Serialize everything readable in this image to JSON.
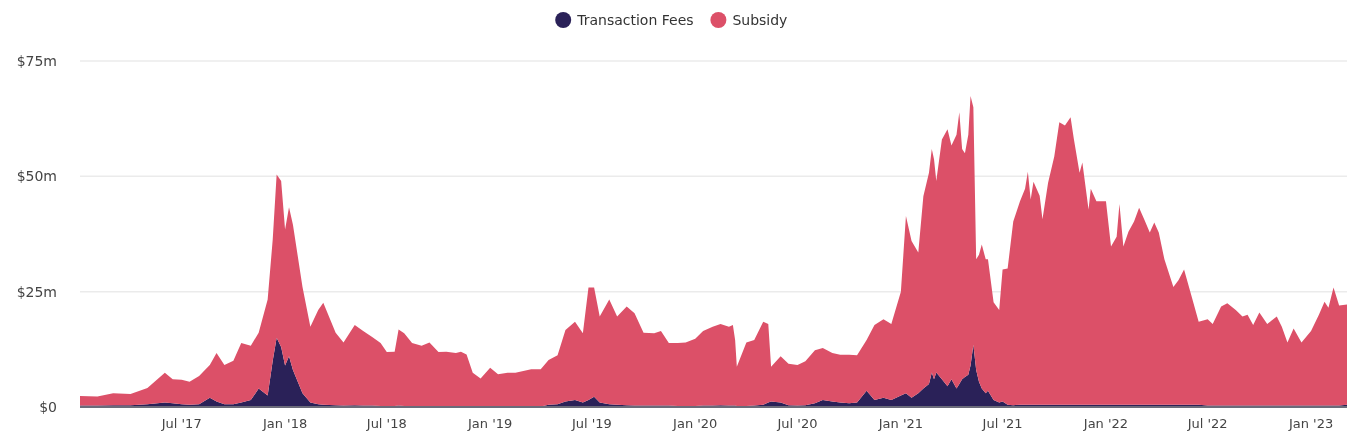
{
  "chart_data": {
    "type": "area",
    "stacked": true,
    "legend": "top",
    "grid": "y",
    "x": [
      "2017-01-01",
      "2017-02-01",
      "2017-03-01",
      "2017-04-01",
      "2017-05-01",
      "2017-06-01",
      "2017-06-15",
      "2017-07-01",
      "2017-07-15",
      "2017-08-01",
      "2017-08-20",
      "2017-09-01",
      "2017-09-15",
      "2017-10-01",
      "2017-10-15",
      "2017-11-01",
      "2017-11-15",
      "2017-12-01",
      "2017-12-10",
      "2017-12-17",
      "2017-12-25",
      "2018-01-01",
      "2018-01-08",
      "2018-01-15",
      "2018-02-01",
      "2018-02-15",
      "2018-03-01",
      "2018-03-10",
      "2018-04-01",
      "2018-04-15",
      "2018-05-05",
      "2018-05-20",
      "2018-06-05",
      "2018-06-20",
      "2018-07-01",
      "2018-07-15",
      "2018-07-22",
      "2018-08-01",
      "2018-08-15",
      "2018-09-01",
      "2018-09-15",
      "2018-10-01",
      "2018-10-15",
      "2018-11-01",
      "2018-11-10",
      "2018-11-20",
      "2018-12-01",
      "2018-12-15",
      "2019-01-01",
      "2019-01-15",
      "2019-02-01",
      "2019-02-15",
      "2019-03-01",
      "2019-03-15",
      "2019-04-01",
      "2019-04-15",
      "2019-05-01",
      "2019-05-15",
      "2019-06-01",
      "2019-06-15",
      "2019-06-25",
      "2019-07-05",
      "2019-07-15",
      "2019-08-01",
      "2019-08-15",
      "2019-09-01",
      "2019-09-15",
      "2019-10-01",
      "2019-10-20",
      "2019-11-01",
      "2019-11-15",
      "2019-12-01",
      "2019-12-15",
      "2020-01-01",
      "2020-01-15",
      "2020-02-01",
      "2020-02-15",
      "2020-03-01",
      "2020-03-08",
      "2020-03-12",
      "2020-03-15",
      "2020-04-01",
      "2020-04-15",
      "2020-05-01",
      "2020-05-10",
      "2020-05-15",
      "2020-06-01",
      "2020-06-15",
      "2020-07-01",
      "2020-07-15",
      "2020-08-01",
      "2020-08-15",
      "2020-09-01",
      "2020-09-15",
      "2020-10-01",
      "2020-10-15",
      "2020-11-01",
      "2020-11-15",
      "2020-12-01",
      "2020-12-15",
      "2021-01-01",
      "2021-01-10",
      "2021-01-20",
      "2021-02-01",
      "2021-02-10",
      "2021-02-20",
      "2021-02-25",
      "2021-03-01",
      "2021-03-05",
      "2021-03-15",
      "2021-03-25",
      "2021-04-01",
      "2021-04-10",
      "2021-04-15",
      "2021-04-20",
      "2021-04-25",
      "2021-05-01",
      "2021-05-05",
      "2021-05-10",
      "2021-05-15",
      "2021-05-20",
      "2021-05-25",
      "2021-06-01",
      "2021-06-05",
      "2021-06-15",
      "2021-06-25",
      "2021-07-01",
      "2021-07-10",
      "2021-07-20",
      "2021-08-01",
      "2021-08-10",
      "2021-08-15",
      "2021-08-20",
      "2021-08-25",
      "2021-09-05",
      "2021-09-10",
      "2021-09-20",
      "2021-10-01",
      "2021-10-10",
      "2021-10-20",
      "2021-10-30",
      "2021-11-05",
      "2021-11-15",
      "2021-11-20",
      "2021-12-01",
      "2021-12-05",
      "2021-12-15",
      "2022-01-01",
      "2022-01-10",
      "2022-01-20",
      "2022-01-25",
      "2022-02-01",
      "2022-02-10",
      "2022-02-20",
      "2022-03-01",
      "2022-03-10",
      "2022-03-20",
      "2022-03-28",
      "2022-04-05",
      "2022-04-15",
      "2022-05-01",
      "2022-05-10",
      "2022-05-20",
      "2022-06-01",
      "2022-06-15",
      "2022-07-01",
      "2022-07-10",
      "2022-07-25",
      "2022-08-05",
      "2022-08-20",
      "2022-09-01",
      "2022-09-10",
      "2022-09-20",
      "2022-10-01",
      "2022-10-15",
      "2022-11-01",
      "2022-11-10",
      "2022-11-20",
      "2022-12-01",
      "2022-12-15",
      "2023-01-01",
      "2023-01-15",
      "2023-01-25",
      "2023-02-01",
      "2023-02-10",
      "2023-02-20",
      "2023-03-06"
    ],
    "series": [
      {
        "name": "Transaction Fees",
        "color": "#2a2158",
        "values": [
          0.3,
          0.3,
          0.4,
          0.4,
          0.6,
          1.0,
          0.8,
          0.6,
          0.5,
          0.6,
          2.0,
          1.2,
          0.6,
          0.6,
          1.0,
          1.5,
          4.0,
          2.5,
          10,
          15,
          13,
          9,
          11,
          8,
          3,
          1,
          0.6,
          0.5,
          0.4,
          0.3,
          0.4,
          0.3,
          0.3,
          0.2,
          0.2,
          0.2,
          0.3,
          0.2,
          0.2,
          0.2,
          0.2,
          0.2,
          0.2,
          0.2,
          0.2,
          0.2,
          0.1,
          0.1,
          0.1,
          0.1,
          0.1,
          0.1,
          0.1,
          0.1,
          0.1,
          0.5,
          0.6,
          1.2,
          1.5,
          1.0,
          1.5,
          2.2,
          1.0,
          0.6,
          0.5,
          0.4,
          0.3,
          0.3,
          0.3,
          0.3,
          0.3,
          0.2,
          0.2,
          0.2,
          0.3,
          0.3,
          0.4,
          0.3,
          0.3,
          0.3,
          0.2,
          0.2,
          0.3,
          0.5,
          1.0,
          1.2,
          1.0,
          0.4,
          0.3,
          0.4,
          0.8,
          1.5,
          1.2,
          1.0,
          0.8,
          1.0,
          3.5,
          1.5,
          2,
          1.5,
          2.5,
          3,
          2,
          3,
          4,
          5,
          7.5,
          6,
          7.5,
          6,
          4.5,
          6,
          4,
          5,
          6,
          6.5,
          7,
          9,
          13.5,
          8,
          5.5,
          4,
          3,
          3.5,
          1.5,
          1,
          1.2,
          0.5,
          0.4,
          0.5,
          0.5,
          0.5,
          0.5,
          0.5,
          0.5,
          0.5,
          0.5,
          0.5,
          0.5,
          0.5,
          0.5,
          0.5,
          0.5,
          0.5,
          0.5,
          0.5,
          0.5,
          0.5,
          0.5,
          0.5,
          0.5,
          0.5,
          0.5,
          0.5,
          0.5,
          0.5,
          0.5,
          0.5,
          0.5,
          0.5,
          0.5,
          0.5,
          0.5,
          0.5,
          0.5,
          0.3,
          0.3,
          0.3,
          0.3,
          0.3,
          0.3,
          0.3,
          0.3,
          0.3,
          0.3,
          0.3,
          0.3,
          0.3,
          0.3,
          0.3,
          0.3,
          0.3,
          0.3,
          0.3,
          0.3,
          0.3,
          0.5
        ]
      },
      {
        "name": "Subsidy",
        "color": "#dc5068",
        "values": [
          2.1,
          2.0,
          2.6,
          2.4,
          3.5,
          6.4,
          5.2,
          5.3,
          5.0,
          6.1,
          7.1,
          10.5,
          8.5,
          9.4,
          12.9,
          11.8,
          12.1,
          20.8,
          26.3,
          35.4,
          36,
          29.5,
          32.3,
          31.5,
          23,
          16.4,
          20.4,
          22.1,
          15.7,
          13.7,
          17.4,
          16.2,
          14.9,
          13.7,
          11.7,
          11.8,
          16.5,
          15.8,
          13.7,
          13.1,
          13.8,
          11.7,
          11.8,
          11.5,
          11.8,
          11.2,
          7.3,
          6.1,
          8.4,
          7.0,
          7.3,
          7.3,
          7.7,
          8.1,
          8.1,
          9.7,
          10.6,
          15.5,
          17.0,
          15.0,
          24.4,
          23.7,
          18.6,
          22.7,
          19.1,
          21.4,
          20.0,
          15.8,
          15.7,
          16.2,
          13.6,
          13.7,
          13.8,
          14.6,
          16.2,
          17.1,
          17.6,
          17.1,
          17.5,
          14.2,
          8.5,
          13.8,
          14.2,
          18.0,
          17.0,
          7.5,
          10.0,
          9.0,
          8.8,
          9.5,
          11.5,
          11.3,
          10.5,
          10.3,
          10.5,
          10.2,
          11.0,
          16.3,
          17,
          16.5,
          22.5,
          38.4,
          34,
          30.5,
          41.7,
          45.8,
          48.4,
          47.7,
          41.5,
          52,
          55.7,
          50.7,
          55,
          58.9,
          49.9,
          48.5,
          52,
          58.4,
          51.5,
          24,
          27.5,
          31.2,
          29,
          28.5,
          21.2,
          20,
          28.6,
          29.5,
          39.8,
          44.1,
          46.8,
          50.5,
          44.5,
          48.3,
          45.3,
          40.2,
          48.1,
          53.8,
          61.2,
          60.5,
          62.3,
          57.5,
          50.3,
          52.5,
          42.3,
          46.8,
          44.1,
          44.1,
          34.3,
          36.4,
          43.5,
          34.3,
          37.5,
          39.7,
          42.7,
          40.2,
          37.3,
          39.5,
          37.3,
          31.5,
          25.5,
          27,
          29.3,
          24.1,
          18,
          18.7,
          17.7,
          21.5,
          22.2,
          20.7,
          19.3,
          19.7,
          17.5,
          20.2,
          17.7,
          19.3,
          17.1,
          13.7,
          16.7,
          13.7,
          16.2,
          19.7,
          22.5,
          21.2,
          25.6,
          21.7,
          21.7
        ]
      }
    ],
    "xlim": [
      "2017-01-01",
      "2023-03-06"
    ],
    "xticks": [
      {
        "value": "2017-07-01",
        "label": "Jul '17"
      },
      {
        "value": "2018-01-01",
        "label": "Jan '18"
      },
      {
        "value": "2018-07-01",
        "label": "Jul '18"
      },
      {
        "value": "2019-01-01",
        "label": "Jan '19"
      },
      {
        "value": "2019-07-01",
        "label": "Jul '19"
      },
      {
        "value": "2020-01-01",
        "label": "Jan '20"
      },
      {
        "value": "2020-07-01",
        "label": "Jul '20"
      },
      {
        "value": "2021-01-01",
        "label": "Jan '21"
      },
      {
        "value": "2021-07-01",
        "label": "Jul '21"
      },
      {
        "value": "2022-01-01",
        "label": "Jan '22"
      },
      {
        "value": "2022-07-01",
        "label": "Jul '22"
      },
      {
        "value": "2023-01-01",
        "label": "Jan '23"
      }
    ],
    "ylim": [
      0,
      75
    ],
    "yticks": [
      {
        "value": 0,
        "label": "$0"
      },
      {
        "value": 25,
        "label": "$25m"
      },
      {
        "value": 50,
        "label": "$50m"
      },
      {
        "value": 75,
        "label": "$75m"
      }
    ]
  }
}
